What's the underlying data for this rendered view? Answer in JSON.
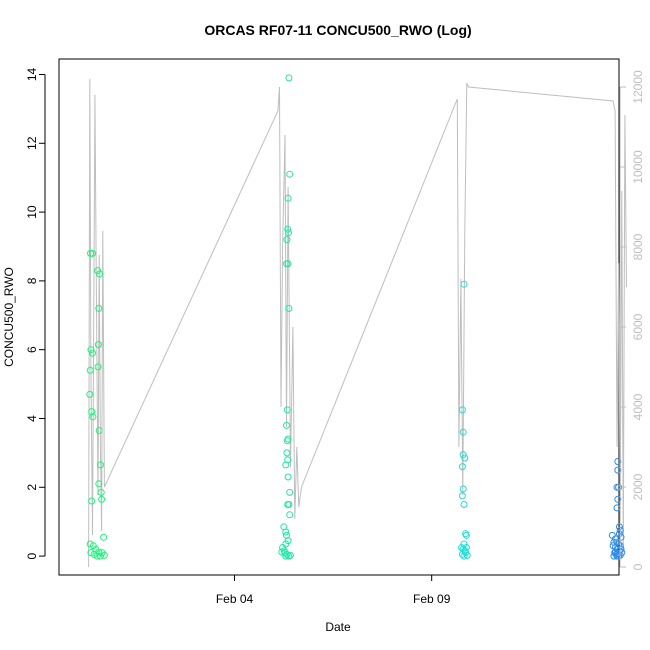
{
  "chart_data": {
    "type": "scatter",
    "title": "ORCAS RF07-11 CONCU500_RWO (Log)",
    "xlabel": "Date",
    "ylabel": "CONCU500_RWO",
    "y2label": "",
    "x_ticks": [
      {
        "label": "Feb 04",
        "value": 4.0
      },
      {
        "label": "Feb 09",
        "value": 9.0
      }
    ],
    "y_ticks": [
      0,
      2,
      4,
      6,
      8,
      10,
      12,
      14
    ],
    "y2_ticks": [
      0,
      2000,
      4000,
      6000,
      8000,
      10000,
      12000
    ],
    "xlim": [
      -0.45,
      13.75
    ],
    "ylim": [
      -0.55,
      14.45
    ],
    "y2lim": [
      -200,
      12700
    ],
    "grid": false,
    "legend": "none",
    "x_units": "days in February",
    "colors": {
      "line": "#bebebe",
      "right_axis": "#bebebe",
      "rf07": "#1ef37a",
      "rf08": "#1ee8a6",
      "rf09": "#1edfd6",
      "rf10": "#2e8ce9"
    },
    "line_series": {
      "name": "",
      "points": [
        [
          0.3,
          0
        ],
        [
          0.33,
          12200
        ],
        [
          0.36,
          5000
        ],
        [
          0.4,
          800
        ],
        [
          0.43,
          6000
        ],
        [
          0.46,
          11800
        ],
        [
          0.5,
          6500
        ],
        [
          0.54,
          1800
        ],
        [
          0.57,
          7800
        ],
        [
          0.6,
          3000
        ],
        [
          0.63,
          900
        ],
        [
          0.66,
          8400
        ],
        [
          0.7,
          2000
        ],
        [
          5.1,
          11400
        ],
        [
          5.14,
          12000
        ],
        [
          5.18,
          4000
        ],
        [
          5.22,
          8000
        ],
        [
          5.28,
          10800
        ],
        [
          5.32,
          3500
        ],
        [
          5.36,
          9500
        ],
        [
          5.42,
          2500
        ],
        [
          5.48,
          6000
        ],
        [
          5.53,
          1200
        ],
        [
          5.58,
          3000
        ],
        [
          5.63,
          1500
        ],
        [
          5.7,
          2000
        ],
        [
          9.65,
          11700
        ],
        [
          9.69,
          3000
        ],
        [
          9.74,
          7200
        ],
        [
          9.79,
          1800
        ],
        [
          9.84,
          8400
        ],
        [
          9.89,
          12100
        ],
        [
          9.93,
          12000
        ],
        [
          13.6,
          11650
        ],
        [
          13.65,
          11400
        ],
        [
          13.7,
          3000
        ],
        [
          13.74,
          7600
        ],
        [
          13.78,
          1200
        ],
        [
          13.82,
          9400
        ],
        [
          13.86,
          400
        ],
        [
          13.9,
          11300
        ],
        [
          13.94,
          7000
        ]
      ]
    },
    "series": [
      {
        "name": "",
        "color": "#1ef37a",
        "points": [
          [
            0.35,
            8.8
          ],
          [
            0.4,
            8.8
          ],
          [
            0.36,
            6.0
          ],
          [
            0.4,
            5.9
          ],
          [
            0.34,
            5.4
          ],
          [
            0.33,
            4.7
          ],
          [
            0.38,
            4.2
          ],
          [
            0.41,
            4.05
          ],
          [
            0.38,
            1.6
          ],
          [
            0.34,
            0.35
          ],
          [
            0.42,
            0.3
          ],
          [
            0.36,
            0.1
          ],
          [
            0.44,
            0.05
          ],
          [
            0.48,
            0.2
          ],
          [
            0.52,
            0.0
          ],
          [
            0.56,
            0.12
          ],
          [
            0.53,
            8.3
          ],
          [
            0.58,
            8.2
          ],
          [
            0.56,
            7.2
          ],
          [
            0.55,
            6.15
          ],
          [
            0.54,
            5.5
          ],
          [
            0.57,
            3.65
          ],
          [
            0.6,
            2.65
          ],
          [
            0.56,
            2.1
          ],
          [
            0.62,
            1.85
          ],
          [
            0.63,
            1.65
          ],
          [
            0.68,
            0.55
          ],
          [
            0.6,
            0.0
          ],
          [
            0.64,
            0.1
          ],
          [
            0.7,
            0.02
          ]
        ]
      },
      {
        "name": "",
        "color": "#1ee8a6",
        "points": [
          [
            5.38,
            13.9
          ],
          [
            5.4,
            11.1
          ],
          [
            5.36,
            10.4
          ],
          [
            5.35,
            9.5
          ],
          [
            5.37,
            9.4
          ],
          [
            5.33,
            9.2
          ],
          [
            5.32,
            8.5
          ],
          [
            5.36,
            8.5
          ],
          [
            5.38,
            7.2
          ],
          [
            5.34,
            4.25
          ],
          [
            5.32,
            3.8
          ],
          [
            5.36,
            3.4
          ],
          [
            5.34,
            3.35
          ],
          [
            5.33,
            3.0
          ],
          [
            5.35,
            2.8
          ],
          [
            5.3,
            2.65
          ],
          [
            5.36,
            2.3
          ],
          [
            5.4,
            1.85
          ],
          [
            5.35,
            1.5
          ],
          [
            5.38,
            1.5
          ],
          [
            5.4,
            1.2
          ],
          [
            5.25,
            0.85
          ],
          [
            5.3,
            0.7
          ],
          [
            5.32,
            0.6
          ],
          [
            5.36,
            0.45
          ],
          [
            5.3,
            0.35
          ],
          [
            5.22,
            0.25
          ],
          [
            5.26,
            0.15
          ],
          [
            5.28,
            0.1
          ],
          [
            5.33,
            0.05
          ],
          [
            5.38,
            0.0
          ],
          [
            5.42,
            0.02
          ],
          [
            5.2,
            0.12
          ],
          [
            5.3,
            0.0
          ]
        ]
      },
      {
        "name": "",
        "color": "#1edfd6",
        "points": [
          [
            9.82,
            7.9
          ],
          [
            9.78,
            4.25
          ],
          [
            9.8,
            3.6
          ],
          [
            9.8,
            2.95
          ],
          [
            9.84,
            2.85
          ],
          [
            9.78,
            2.6
          ],
          [
            9.8,
            1.95
          ],
          [
            9.78,
            1.75
          ],
          [
            9.82,
            1.5
          ],
          [
            9.86,
            0.65
          ],
          [
            9.88,
            0.6
          ],
          [
            9.82,
            0.35
          ],
          [
            9.76,
            0.25
          ],
          [
            9.8,
            0.2
          ],
          [
            9.84,
            0.15
          ],
          [
            9.88,
            0.25
          ],
          [
            9.78,
            0.05
          ],
          [
            9.82,
            0.0
          ],
          [
            9.86,
            0.1
          ],
          [
            9.9,
            0.02
          ]
        ]
      },
      {
        "name": "",
        "color": "#2e8ce9",
        "points": [
          [
            13.72,
            2.75
          ],
          [
            13.72,
            2.5
          ],
          [
            13.7,
            2.0
          ],
          [
            13.74,
            2.0
          ],
          [
            13.72,
            1.65
          ],
          [
            13.7,
            1.4
          ],
          [
            13.76,
            0.85
          ],
          [
            13.78,
            0.75
          ],
          [
            13.76,
            0.65
          ],
          [
            13.58,
            0.6
          ],
          [
            13.66,
            0.5
          ],
          [
            13.8,
            0.55
          ],
          [
            13.62,
            0.4
          ],
          [
            13.7,
            0.4
          ],
          [
            13.74,
            0.35
          ],
          [
            13.78,
            0.3
          ],
          [
            13.6,
            0.3
          ],
          [
            13.66,
            0.25
          ],
          [
            13.7,
            0.2
          ],
          [
            13.76,
            0.15
          ],
          [
            13.8,
            0.2
          ],
          [
            13.64,
            0.1
          ],
          [
            13.68,
            0.05
          ],
          [
            13.72,
            0.08
          ],
          [
            13.74,
            0.0
          ],
          [
            13.78,
            0.02
          ],
          [
            13.62,
            0.0
          ],
          [
            13.66,
            0.12
          ],
          [
            13.7,
            0.0
          ],
          [
            13.82,
            0.1
          ]
        ]
      }
    ]
  }
}
